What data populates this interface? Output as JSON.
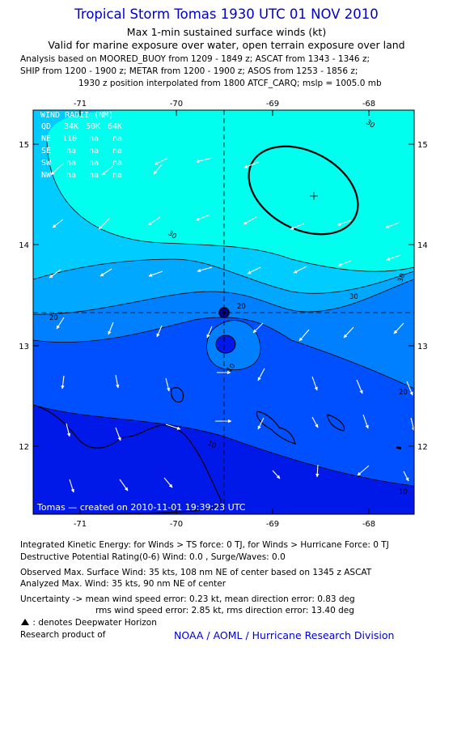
{
  "header": {
    "title": "Tropical Storm Tomas 1930 UTC 01 NOV 2010",
    "subtitle1": "Max 1-min sustained surface winds (kt)",
    "subtitle2": "Valid for marine exposure over water, open terrain exposure over land",
    "analysis_lines": [
      "Analysis based on MOORED_BUOY from 1209 - 1849 z; ASCAT from 1343 - 1346 z;",
      "SHIP from 1200 - 1900 z; METAR from 1200 - 1900 z; ASOS from 1253 - 1856 z;",
      "1930 z position interpolated from 1800 ATCF_CARQ; mslp = 1005.0 mb"
    ]
  },
  "map": {
    "x_ticks": [
      "-71",
      "-70",
      "-69",
      "-68"
    ],
    "y_ticks": [
      "15",
      "14",
      "13",
      "12"
    ],
    "wind_radii": {
      "title": "WIND RADII (NM)",
      "columns": [
        "QD",
        "34K",
        "50K",
        "64K"
      ],
      "rows": [
        [
          "NE",
          "110",
          "na",
          "na"
        ],
        [
          "SE",
          "na",
          "na",
          "na"
        ],
        [
          "SW",
          "na",
          "na",
          "na"
        ],
        [
          "NW",
          "na",
          "na",
          "na"
        ]
      ]
    },
    "contour_labels": [
      "30",
      "30",
      "30",
      "30",
      "20",
      "20",
      "20",
      "10",
      "10",
      "10"
    ],
    "credit": "Tomas — created on 2010-11-01 19:39:23 UTC",
    "colors": {
      "band_30_plus": "#00ffee",
      "band_25_30": "#00ccff",
      "band_20_25": "#00a8ff",
      "band_15_20": "#0080ff",
      "band_10_15": "#0050ff",
      "band_0_10": "#0018e8",
      "land": "#0018e8"
    }
  },
  "footer": {
    "ike": "Integrated Kinetic Energy:  for Winds > TS force: 0 TJ,  for Winds > Hurricane Force: 0 TJ",
    "dpr": "Destructive Potential Rating(0-6)   Wind: 0.0 , Surge/Waves: 0.0",
    "obs": "Observed Max. Surface Wind: 35 kts, 108 nm NE of center based on 1345 z ASCAT",
    "ana": "Analyzed Max. Wind: 35 kts, 90 nm NE of center",
    "unc1": "Uncertainty -> mean wind speed error: 0.23 kt,   mean direction error: 0.83 deg",
    "unc2": "rms wind speed error: 2.85 kt,   rms direction error: 13.40 deg",
    "dw": ": denotes Deepwater Horizon",
    "research": "Research product of",
    "noaa": "NOAA / AOML / Hurricane Research Division"
  }
}
